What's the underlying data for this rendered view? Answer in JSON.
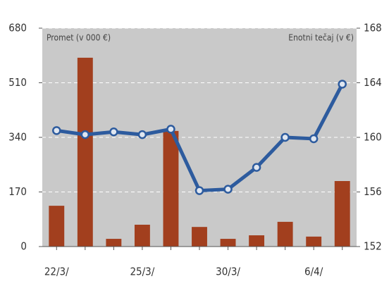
{
  "chart_data": {
    "type": "bar",
    "categories": [
      "22/3/",
      null,
      null,
      "25/3/",
      null,
      null,
      "30/3/",
      null,
      null,
      "6/4/",
      null
    ],
    "series": [
      {
        "name": "Promet (v 000 €)",
        "color": "#a23f1e",
        "type": "bar",
        "values": [
          127,
          588,
          24,
          68,
          360,
          61,
          24,
          35,
          77,
          31,
          204
        ]
      },
      {
        "name": "Enotni tečaj (v €)",
        "color": "#2d5b9e",
        "type": "line",
        "axis": "y2",
        "values": [
          160.5,
          160.2,
          160.4,
          160.2,
          160.6,
          156.1,
          156.2,
          157.8,
          160.0,
          159.9,
          163.9
        ]
      }
    ],
    "ylim": [
      0,
      680
    ],
    "yticks": [
      0,
      170,
      340,
      510,
      680
    ],
    "y2lim": [
      152,
      168
    ],
    "y2ticks": [
      152,
      156,
      160,
      164,
      168
    ],
    "grid": true
  }
}
